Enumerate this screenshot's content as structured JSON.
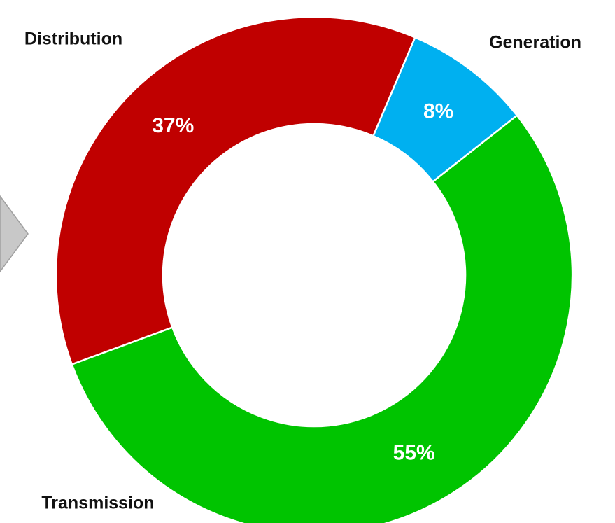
{
  "chart_data": {
    "type": "donut",
    "categories": [
      "Generation",
      "Transmission",
      "Distribution"
    ],
    "values": [
      8,
      55,
      37
    ],
    "value_labels": [
      "8%",
      "55%",
      "37%"
    ],
    "colors": [
      "#00b0f0",
      "#00c400",
      "#c00000"
    ]
  }
}
